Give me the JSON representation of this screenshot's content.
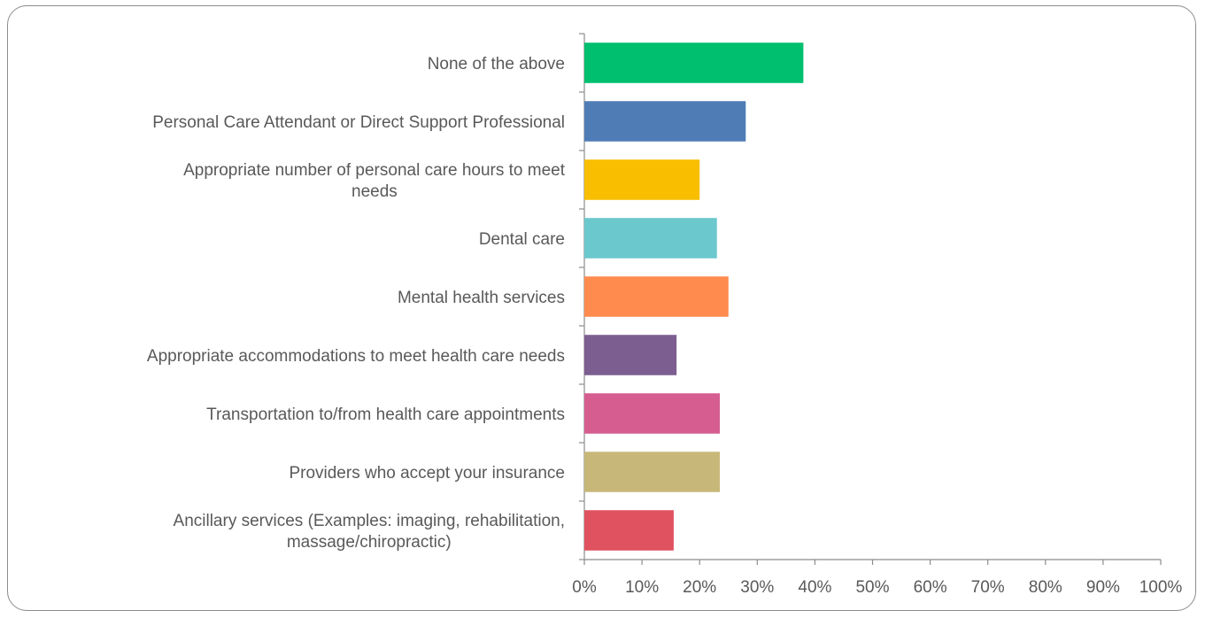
{
  "chart_data": {
    "type": "bar",
    "orientation": "horizontal",
    "categories": [
      "None of the above",
      "Personal Care Attendant or Direct Support Professional",
      "Appropriate number of personal care hours to meet needs",
      "Dental care",
      "Mental health services",
      "Appropriate accommodations to meet health care needs",
      "Transportation to/from health care appointments",
      "Providers who accept your insurance",
      "Ancillary services (Examples: imaging, rehabilitation, massage/chiropractic)"
    ],
    "category_lines": [
      [
        "None of the above"
      ],
      [
        "Personal Care Attendant or Direct Support Professional"
      ],
      [
        "Appropriate number of personal care hours to meet",
        "needs"
      ],
      [
        "Dental care"
      ],
      [
        "Mental health services"
      ],
      [
        "Appropriate accommodations to meet health care needs"
      ],
      [
        "Transportation to/from health care appointments"
      ],
      [
        "Providers who accept your insurance"
      ],
      [
        "Ancillary services (Examples: imaging, rehabilitation,",
        "massage/chiropractic)"
      ]
    ],
    "values": [
      38,
      28,
      20,
      23,
      25,
      16,
      23.5,
      23.5,
      15.5
    ],
    "colors": [
      "#00bf6f",
      "#507cb6",
      "#f9be00",
      "#6bc8cd",
      "#ff8b4f",
      "#7d5e90",
      "#d65d8f",
      "#c7b879",
      "#e05260"
    ],
    "xlim": [
      0,
      100
    ],
    "x_ticks": [
      "0%",
      "10%",
      "20%",
      "30%",
      "40%",
      "50%",
      "60%",
      "70%",
      "80%",
      "90%",
      "100%"
    ],
    "x_tick_values": [
      0,
      10,
      20,
      30,
      40,
      50,
      60,
      70,
      80,
      90,
      100
    ],
    "grid": false,
    "legend": "none",
    "title": "",
    "xlabel": "",
    "ylabel": ""
  }
}
